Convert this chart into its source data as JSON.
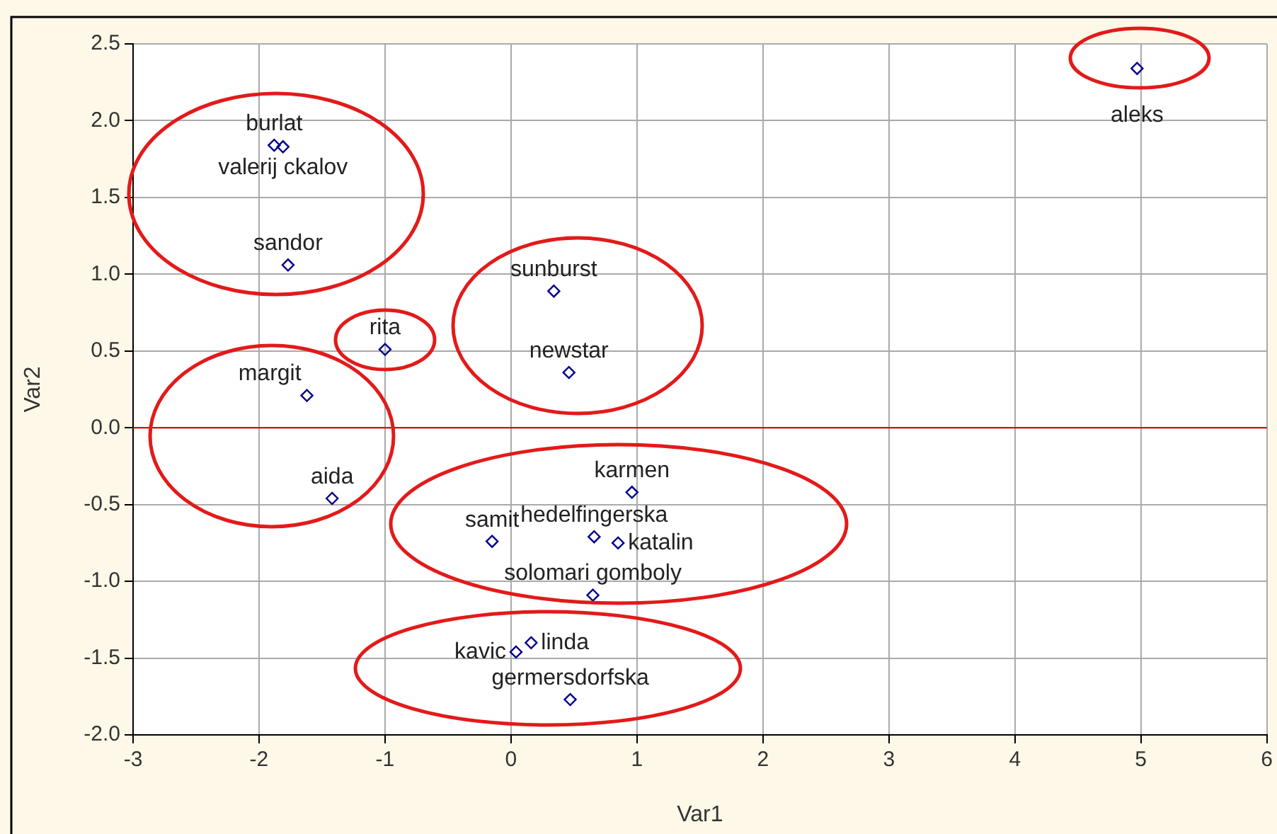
{
  "chart_data": {
    "type": "scatter",
    "xlabel": "Var1",
    "ylabel": "Var2",
    "x": [
      4.97,
      -1.88,
      -1.81,
      -1.77,
      -1.0,
      -1.62,
      -1.42,
      0.34,
      0.46,
      0.96,
      -0.15,
      0.66,
      0.85,
      0.65,
      0.16,
      0.04,
      0.47
    ],
    "series": [
      {
        "color": "#00008b",
        "values": [
          2.34,
          1.84,
          1.83,
          1.06,
          0.51,
          0.21,
          -0.46,
          0.89,
          0.36,
          -0.42,
          -0.74,
          -0.71,
          -0.75,
          -1.09,
          -1.4,
          -1.46,
          -1.77
        ]
      }
    ],
    "xlim": [
      -3,
      6
    ],
    "xticks": [
      -3,
      -2,
      -1,
      0,
      1,
      2,
      3,
      4,
      5,
      6
    ],
    "ylim": [
      -2,
      2.5
    ],
    "yticks": [
      {
        "value": -2,
        "label": "-2.0"
      },
      {
        "value": -1.5,
        "label": "-1.5"
      },
      {
        "value": -1,
        "label": "-1.0"
      },
      {
        "value": -0.5,
        "label": "-0.5"
      },
      {
        "value": 0,
        "label": "0.0"
      },
      {
        "value": 0.5,
        "label": "0.5"
      },
      {
        "value": 1,
        "label": "1.0"
      },
      {
        "value": 1.5,
        "label": "1.5"
      },
      {
        "value": 2,
        "label": "2.0"
      },
      {
        "value": 2.5,
        "label": "2.5"
      }
    ],
    "grid": true,
    "legend": false,
    "marker": "diamond",
    "ref_lines": [
      {
        "axis": "y",
        "value": 0,
        "color": "#cc0000"
      }
    ],
    "annotations": [
      {
        "text": "aleks",
        "x": 4.97,
        "y": 2.34
      },
      {
        "text": "burlat",
        "x": -1.88,
        "y": 1.84
      },
      {
        "text": "valerij ckalov",
        "x": -1.81,
        "y": 1.83
      },
      {
        "text": "sandor",
        "x": -1.77,
        "y": 1.06
      },
      {
        "text": "rita",
        "x": -1.0,
        "y": 0.51
      },
      {
        "text": "margit",
        "x": -1.62,
        "y": 0.21
      },
      {
        "text": "aida",
        "x": -1.42,
        "y": -0.46
      },
      {
        "text": "sunburst",
        "x": 0.34,
        "y": 0.89
      },
      {
        "text": "newstar",
        "x": 0.46,
        "y": 0.36
      },
      {
        "text": "karmen",
        "x": 0.96,
        "y": -0.42
      },
      {
        "text": "samit",
        "x": -0.15,
        "y": -0.74
      },
      {
        "text": "hedelfingerska",
        "x": 0.66,
        "y": -0.71
      },
      {
        "text": "katalin",
        "x": 0.85,
        "y": -0.75
      },
      {
        "text": "solomari gomboly",
        "x": 0.65,
        "y": -1.09
      },
      {
        "text": "linda",
        "x": 0.16,
        "y": -1.4
      },
      {
        "text": "kavic",
        "x": 0.04,
        "y": -1.46
      },
      {
        "text": "germersdorfska",
        "x": 0.47,
        "y": -1.77
      }
    ]
  }
}
